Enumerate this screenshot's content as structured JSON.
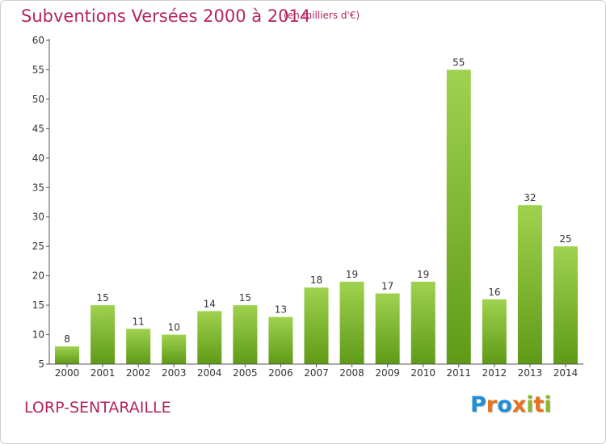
{
  "chart_data": {
    "type": "bar",
    "title": "Subventions Versées 2000 à 2014",
    "subtitle": "(en milliers d'€)",
    "categories": [
      "2000",
      "2001",
      "2002",
      "2003",
      "2004",
      "2005",
      "2006",
      "2007",
      "2008",
      "2009",
      "2010",
      "2011",
      "2012",
      "2013",
      "2014"
    ],
    "values": [
      8,
      15,
      11,
      10,
      14,
      15,
      13,
      18,
      19,
      17,
      19,
      55,
      16,
      32,
      25
    ],
    "ylim": [
      5,
      60
    ],
    "yticks": [
      5,
      10,
      15,
      20,
      25,
      30,
      35,
      40,
      45,
      50,
      55,
      60
    ],
    "xlabel": "",
    "ylabel": "",
    "grid": false,
    "bar_color": "#7cb82f"
  },
  "footer": {
    "place": "LORP-SENTARAILLE",
    "logo_letters": [
      "P",
      "r",
      "o",
      "x",
      "i",
      "t",
      "i"
    ],
    "logo_colors": [
      "#1f8fd6",
      "#e8731c",
      "#1f8fd6",
      "#e8731c",
      "#8ab82a",
      "#e8731c",
      "#8ab82a"
    ]
  },
  "colors": {
    "title": "#b4245f",
    "axis": "#555555"
  }
}
